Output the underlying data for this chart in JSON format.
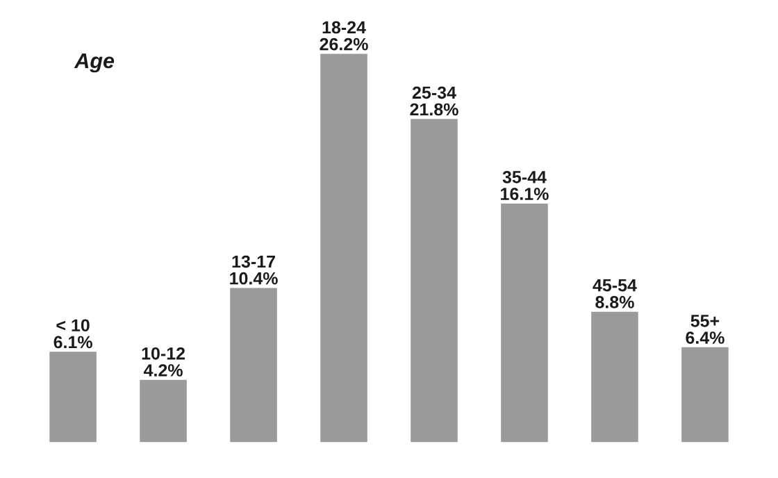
{
  "chart_data": {
    "type": "bar",
    "title": "Age",
    "categories": [
      "< 10",
      "10-12",
      "13-17",
      "18-24",
      "25-34",
      "35-44",
      "45-54",
      "55+"
    ],
    "values": [
      6.1,
      4.2,
      10.4,
      26.2,
      21.8,
      16.1,
      8.8,
      6.4
    ],
    "value_labels": [
      "6.1%",
      "4.2%",
      "10.4%",
      "26.2%",
      "21.8%",
      "16.1%",
      "8.8%",
      "6.4%"
    ],
    "color": "#9a9a9a"
  }
}
